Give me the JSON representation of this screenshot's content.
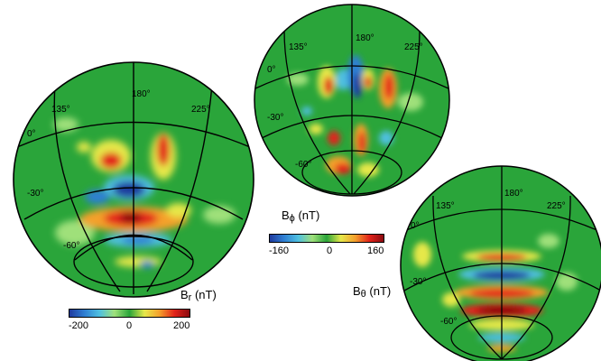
{
  "colors": {
    "ocean_green": "#2aa53a",
    "scale": [
      "#1f3a9e",
      "#2f7fd3",
      "#4fc0e0",
      "#9fe07a",
      "#2aa53a",
      "#e6e84a",
      "#f4a02c",
      "#e2231a",
      "#8b0b10"
    ]
  },
  "globes": [
    {
      "id": "br",
      "quantity_main": "B",
      "quantity_sub": "r",
      "quantity_unit": " (nT)",
      "longitude_labels": [
        "135°",
        "180°",
        "225°"
      ],
      "latitude_labels": [
        "0°",
        "-30°",
        "-60°"
      ],
      "colorbar": {
        "ticks": [
          "-200",
          "0",
          "200"
        ]
      }
    },
    {
      "id": "bphi",
      "quantity_main": "B",
      "quantity_sub": "ϕ",
      "quantity_unit": " (nT)",
      "longitude_labels": [
        "135°",
        "180°",
        "225°"
      ],
      "latitude_labels": [
        "0°",
        "-30°",
        "-60°"
      ],
      "colorbar": {
        "ticks": [
          "-160",
          "0",
          "160"
        ]
      }
    },
    {
      "id": "btheta",
      "quantity_main": "B",
      "quantity_sub": "θ",
      "quantity_unit": " (nT)",
      "longitude_labels": [
        "135°",
        "180°",
        "225°"
      ],
      "latitude_labels": [
        "0°",
        "-30°",
        "-60°"
      ]
    }
  ]
}
